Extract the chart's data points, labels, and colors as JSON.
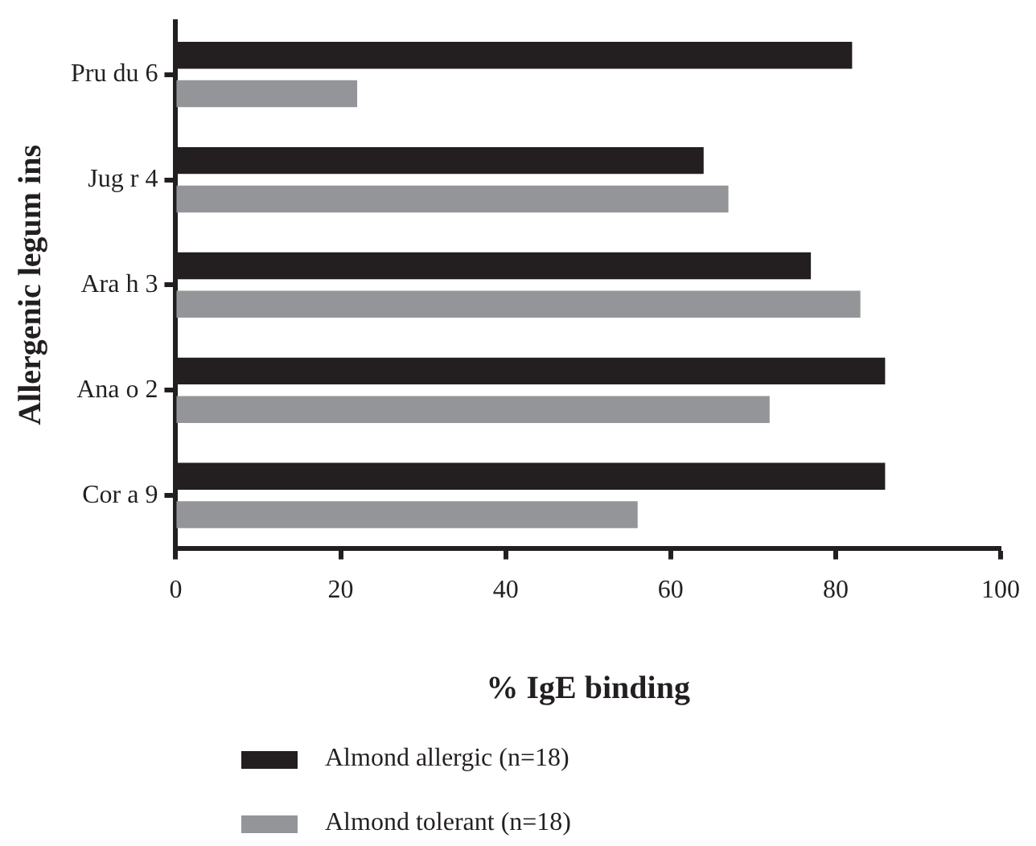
{
  "chart_data": {
    "type": "bar",
    "orientation": "horizontal",
    "xlabel": "% IgE binding",
    "ylabel": "Allergenic legum ins",
    "categories": [
      "Pru du 6",
      "Jug r 4",
      "Ara h 3",
      "Ana o 2",
      "Cor a 9"
    ],
    "series": [
      {
        "name": "Almond allergic (n=18)",
        "color": "#231f20",
        "values": [
          82,
          64,
          77,
          86,
          86
        ]
      },
      {
        "name": "Almond tolerant (n=18)",
        "color": "#939598",
        "values": [
          22,
          67,
          83,
          72,
          56
        ]
      }
    ],
    "xlim": [
      0,
      100
    ],
    "xticks": [
      0,
      20,
      40,
      60,
      80,
      100
    ],
    "grid": false,
    "legend": "bottom"
  }
}
